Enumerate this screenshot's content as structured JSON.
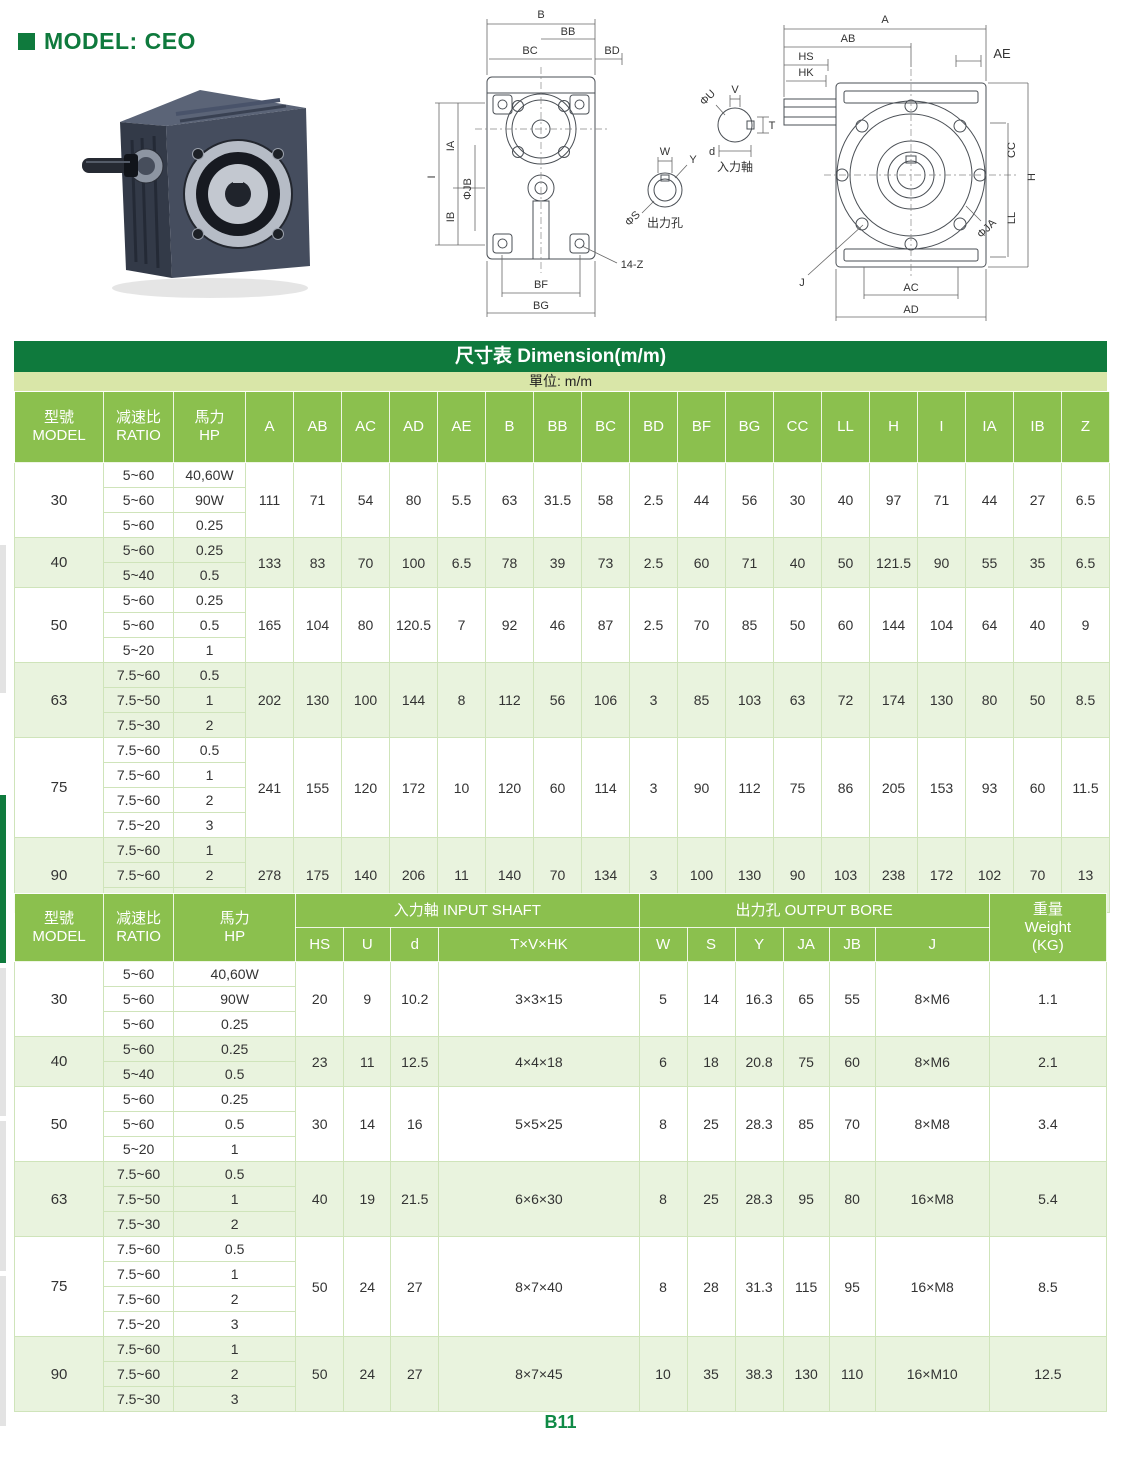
{
  "page": {
    "model_title": "MODEL: CEO",
    "footer": "B11"
  },
  "colors": {
    "brand_green": "#0f7a3d",
    "header_green": "#8bc04e",
    "unit_band": "#d9e6a8",
    "row_shade": "#e9f3de"
  },
  "drawings": {
    "front": {
      "b": "B",
      "bb": "BB",
      "bc": "BC",
      "bd": "BD",
      "i": "I",
      "ia": "IA",
      "ib": "IB",
      "jb": "ΦJB",
      "bf": "BF",
      "bg": "BG",
      "z": "14-Z"
    },
    "bore": {
      "w": "W",
      "y": "Y",
      "s": "ΦS",
      "caption": "出力孔"
    },
    "shaft": {
      "v": "V",
      "t": "T",
      "d": "d",
      "u": "ΦU",
      "caption": "入力軸"
    },
    "side": {
      "a": "A",
      "ab": "AB",
      "ae": "AE",
      "hs": "HS",
      "hk": "HK",
      "h": "H",
      "cc": "CC",
      "ll": "LL",
      "ja": "ΦJA",
      "j": "J",
      "ac": "AC",
      "ad": "AD"
    }
  },
  "table1": {
    "title": "尺寸表 Dimension(m/m)",
    "unit_label": "單位: m/m",
    "col_headers": [
      "型號\nMODEL",
      "减速比\nRATIO",
      "馬力\nHP",
      "A",
      "AB",
      "AC",
      "AD",
      "AE",
      "B",
      "BB",
      "BC",
      "BD",
      "BF",
      "BG",
      "CC",
      "LL",
      "H",
      "I",
      "IA",
      "IB",
      "Z"
    ],
    "groups": [
      {
        "model": "30",
        "shade": false,
        "rows": [
          [
            "5~60",
            "40,60W"
          ],
          [
            "5~60",
            "90W"
          ],
          [
            "5~60",
            "0.25"
          ]
        ],
        "dims": [
          "111",
          "71",
          "54",
          "80",
          "5.5",
          "63",
          "31.5",
          "58",
          "2.5",
          "44",
          "56",
          "30",
          "40",
          "97",
          "71",
          "44",
          "27",
          "6.5"
        ]
      },
      {
        "model": "40",
        "shade": true,
        "rows": [
          [
            "5~60",
            "0.25"
          ],
          [
            "5~40",
            "0.5"
          ]
        ],
        "dims": [
          "133",
          "83",
          "70",
          "100",
          "6.5",
          "78",
          "39",
          "73",
          "2.5",
          "60",
          "71",
          "40",
          "50",
          "121.5",
          "90",
          "55",
          "35",
          "6.5"
        ]
      },
      {
        "model": "50",
        "shade": false,
        "rows": [
          [
            "5~60",
            "0.25"
          ],
          [
            "5~60",
            "0.5"
          ],
          [
            "5~20",
            "1"
          ]
        ],
        "dims": [
          "165",
          "104",
          "80",
          "120.5",
          "7",
          "92",
          "46",
          "87",
          "2.5",
          "70",
          "85",
          "50",
          "60",
          "144",
          "104",
          "64",
          "40",
          "9"
        ]
      },
      {
        "model": "63",
        "shade": true,
        "rows": [
          [
            "7.5~60",
            "0.5"
          ],
          [
            "7.5~50",
            "1"
          ],
          [
            "7.5~30",
            "2"
          ]
        ],
        "dims": [
          "202",
          "130",
          "100",
          "144",
          "8",
          "112",
          "56",
          "106",
          "3",
          "85",
          "103",
          "63",
          "72",
          "174",
          "130",
          "80",
          "50",
          "8.5"
        ]
      },
      {
        "model": "75",
        "shade": false,
        "rows": [
          [
            "7.5~60",
            "0.5"
          ],
          [
            "7.5~60",
            "1"
          ],
          [
            "7.5~60",
            "2"
          ],
          [
            "7.5~20",
            "3"
          ]
        ],
        "dims": [
          "241",
          "155",
          "120",
          "172",
          "10",
          "120",
          "60",
          "114",
          "3",
          "90",
          "112",
          "75",
          "86",
          "205",
          "153",
          "93",
          "60",
          "11.5"
        ]
      },
      {
        "model": "90",
        "shade": true,
        "rows": [
          [
            "7.5~60",
            "1"
          ],
          [
            "7.5~60",
            "2"
          ],
          [
            "7.5~30",
            "3"
          ]
        ],
        "dims": [
          "278",
          "175",
          "140",
          "206",
          "11",
          "140",
          "70",
          "134",
          "3",
          "100",
          "130",
          "90",
          "103",
          "238",
          "172",
          "102",
          "70",
          "13"
        ]
      }
    ]
  },
  "table2": {
    "header": {
      "model": "型號\nMODEL",
      "ratio": "减速比\nRATIO",
      "hp": "馬力\nHP",
      "input_group": "入力軸 INPUT SHAFT",
      "output_group": "出力孔 OUTPUT BORE",
      "weight": "重量\nWeight\n(KG)",
      "input_cols": [
        "HS",
        "U",
        "d",
        "T×V×HK"
      ],
      "output_cols": [
        "W",
        "S",
        "Y",
        "JA",
        "JB",
        "J"
      ]
    },
    "groups": [
      {
        "model": "30",
        "shade": false,
        "rows": [
          [
            "5~60",
            "40,60W"
          ],
          [
            "5~60",
            "90W"
          ],
          [
            "5~60",
            "0.25"
          ]
        ],
        "vals": [
          "20",
          "9",
          "10.2",
          "3×3×15",
          "5",
          "14",
          "16.3",
          "65",
          "55",
          "8×M6",
          "1.1"
        ]
      },
      {
        "model": "40",
        "shade": true,
        "rows": [
          [
            "5~60",
            "0.25"
          ],
          [
            "5~40",
            "0.5"
          ]
        ],
        "vals": [
          "23",
          "11",
          "12.5",
          "4×4×18",
          "6",
          "18",
          "20.8",
          "75",
          "60",
          "8×M6",
          "2.1"
        ]
      },
      {
        "model": "50",
        "shade": false,
        "rows": [
          [
            "5~60",
            "0.25"
          ],
          [
            "5~60",
            "0.5"
          ],
          [
            "5~20",
            "1"
          ]
        ],
        "vals": [
          "30",
          "14",
          "16",
          "5×5×25",
          "8",
          "25",
          "28.3",
          "85",
          "70",
          "8×M8",
          "3.4"
        ]
      },
      {
        "model": "63",
        "shade": true,
        "rows": [
          [
            "7.5~60",
            "0.5"
          ],
          [
            "7.5~50",
            "1"
          ],
          [
            "7.5~30",
            "2"
          ]
        ],
        "vals": [
          "40",
          "19",
          "21.5",
          "6×6×30",
          "8",
          "25",
          "28.3",
          "95",
          "80",
          "16×M8",
          "5.4"
        ]
      },
      {
        "model": "75",
        "shade": false,
        "rows": [
          [
            "7.5~60",
            "0.5"
          ],
          [
            "7.5~60",
            "1"
          ],
          [
            "7.5~60",
            "2"
          ],
          [
            "7.5~20",
            "3"
          ]
        ],
        "vals": [
          "50",
          "24",
          "27",
          "8×7×40",
          "8",
          "28",
          "31.3",
          "115",
          "95",
          "16×M8",
          "8.5"
        ]
      },
      {
        "model": "90",
        "shade": true,
        "rows": [
          [
            "7.5~60",
            "1"
          ],
          [
            "7.5~60",
            "2"
          ],
          [
            "7.5~30",
            "3"
          ]
        ],
        "vals": [
          "50",
          "24",
          "27",
          "8×7×45",
          "10",
          "35",
          "38.3",
          "130",
          "110",
          "16×M10",
          "12.5"
        ]
      }
    ]
  }
}
